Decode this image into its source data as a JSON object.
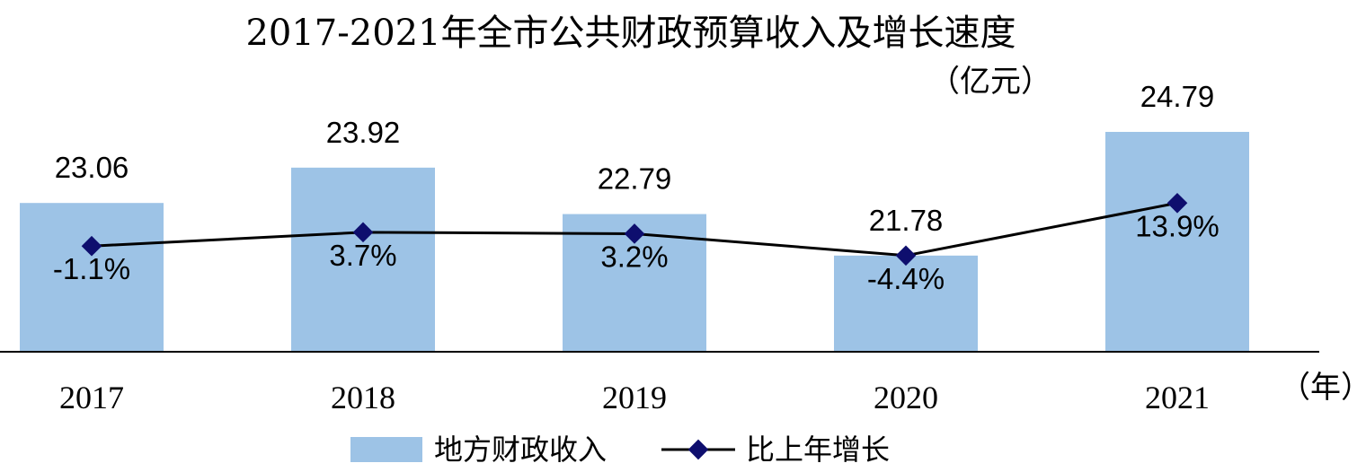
{
  "chart_data": {
    "type": "bar",
    "title": "2017-2021年全市公共财政预算收入及增长速度",
    "unit_label": "（亿元）",
    "x_unit_label": "（年）",
    "categories": [
      "2017",
      "2018",
      "2019",
      "2020",
      "2021"
    ],
    "series": [
      {
        "name": "地方财政收入",
        "type": "bar",
        "values": [
          23.06,
          23.92,
          22.79,
          21.78,
          24.79
        ],
        "labels": [
          "23.06",
          "23.92",
          "22.79",
          "21.78",
          "24.79"
        ],
        "color": "#9DC3E6"
      },
      {
        "name": "比上年增长",
        "type": "line",
        "values": [
          -1.1,
          3.7,
          3.2,
          -4.4,
          13.9
        ],
        "labels": [
          "-1.1%",
          "3.7%",
          "3.2%",
          "-4.4%",
          "13.9%"
        ],
        "color": "#000000",
        "marker_color": "#0E0E6E"
      }
    ],
    "legend_position": "bottom",
    "grid": false
  }
}
